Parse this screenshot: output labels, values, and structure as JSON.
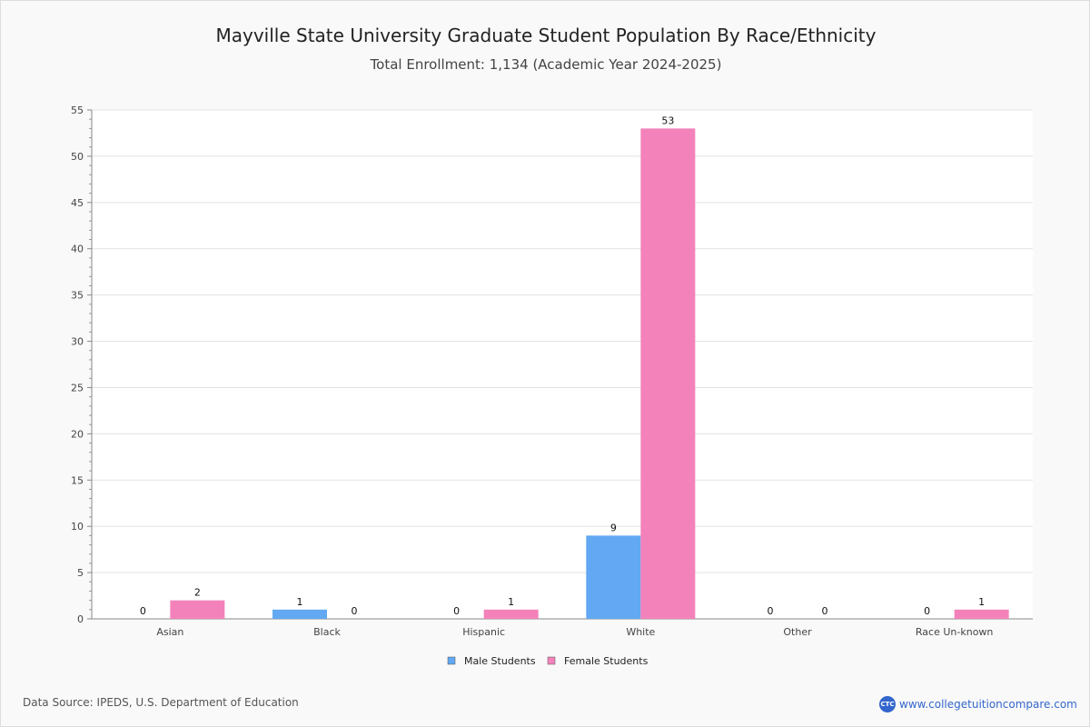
{
  "chart_data": {
    "type": "bar",
    "title": "Mayville State University Graduate Student Population By Race/Ethnicity",
    "subtitle": "Total Enrollment: 1,134 (Academic Year 2024-2025)",
    "categories": [
      "Asian",
      "Black",
      "Hispanic",
      "White",
      "Other",
      "Race Un-known"
    ],
    "series": [
      {
        "name": "Male Students",
        "color": "#62a8f2",
        "values": [
          0,
          1,
          0,
          9,
          0,
          0
        ]
      },
      {
        "name": "Female Students",
        "color": "#f382bb",
        "values": [
          2,
          0,
          1,
          53,
          0,
          1
        ]
      }
    ],
    "ylim": [
      0,
      55
    ],
    "yticks": [
      0,
      5,
      10,
      15,
      20,
      25,
      30,
      35,
      40,
      45,
      50,
      55
    ],
    "grid": true,
    "legend": "bottom-center",
    "xlabel": "",
    "ylabel": ""
  },
  "footer": {
    "source": "Data Source: IPEDS, U.S. Department of Education",
    "brand_logo": "CTC",
    "brand_url": "www.collegetuitioncompare.com"
  }
}
